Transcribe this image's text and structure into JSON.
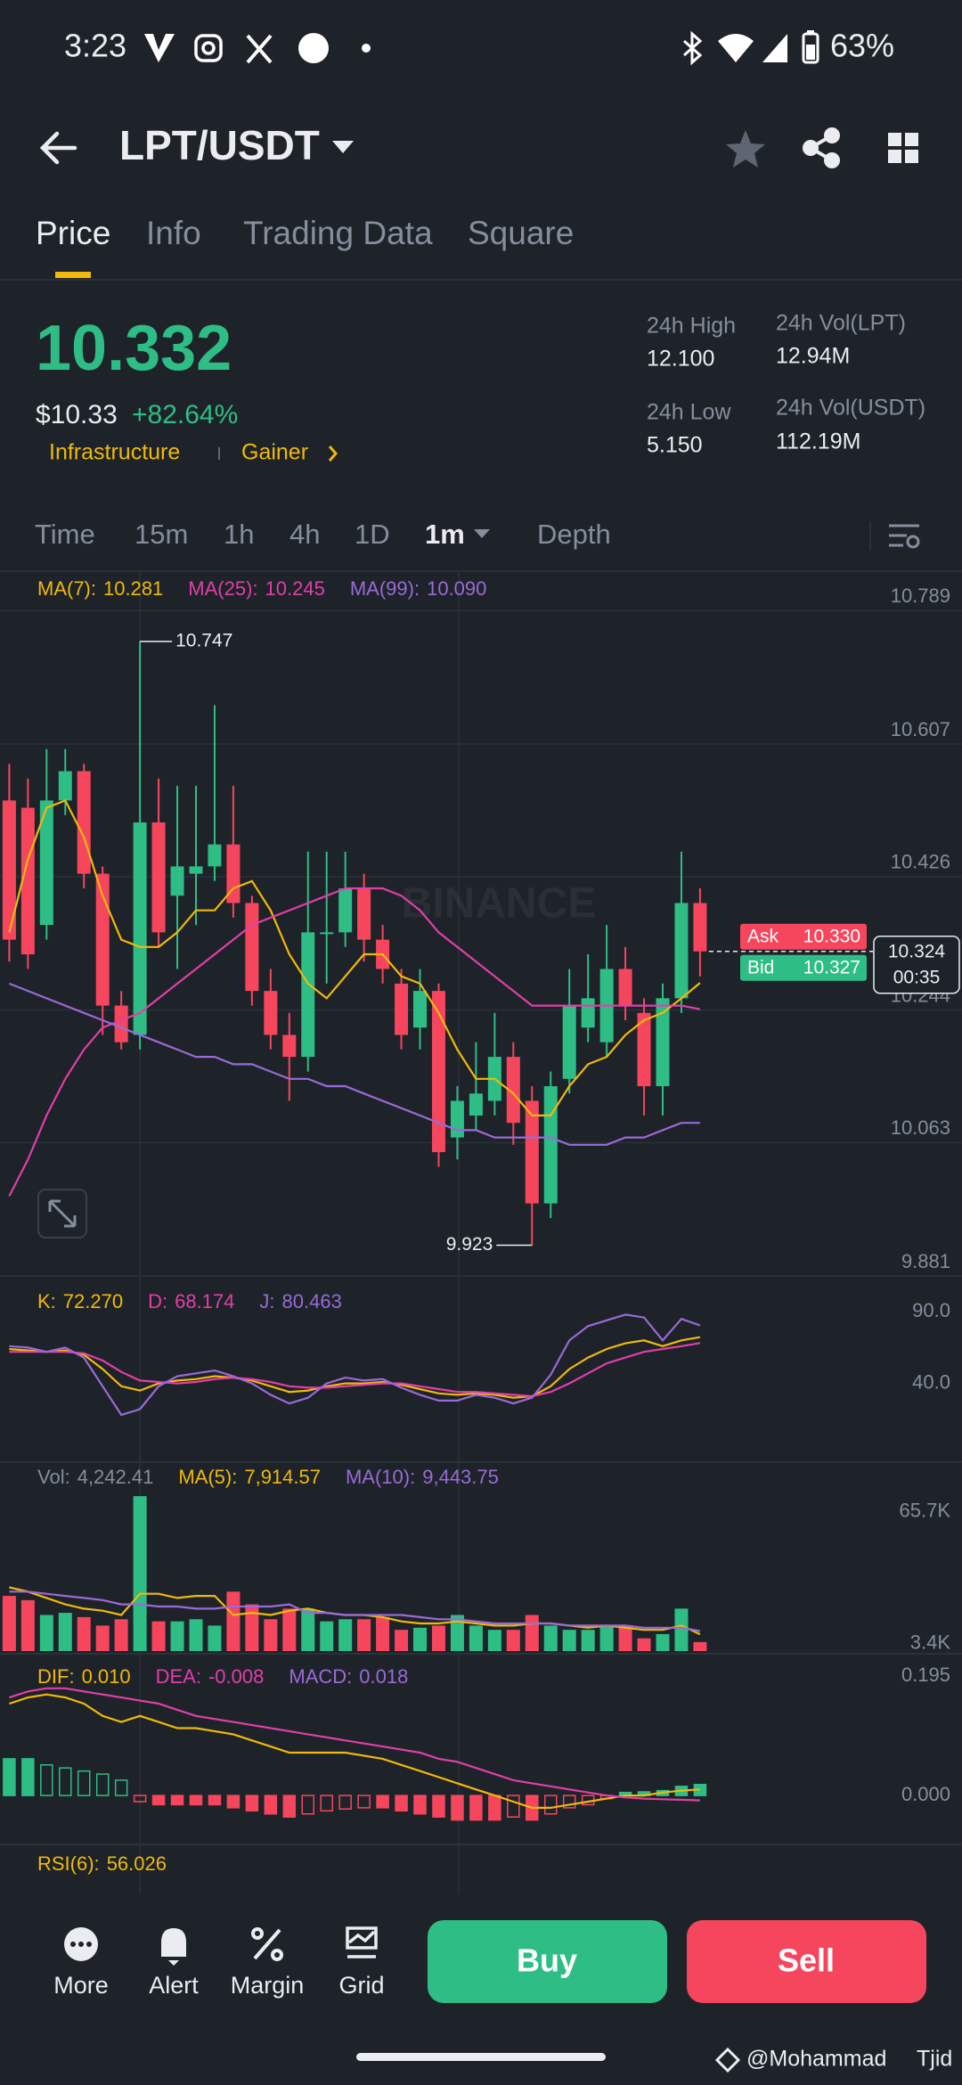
{
  "status_bar": {
    "time": "3:23",
    "battery": "63%"
  },
  "header": {
    "pair": "LPT/USDT"
  },
  "tabs": [
    "Price",
    "Info",
    "Trading Data",
    "Square"
  ],
  "price_info": {
    "last": "10.332",
    "usd": "$10.33",
    "change": "+82.64%",
    "tags": [
      "Infrastructure",
      "Gainer"
    ],
    "stats": [
      {
        "label": "24h High",
        "value": "12.100"
      },
      {
        "label": "24h Low",
        "value": "5.150"
      },
      {
        "label": "24h Vol(LPT)",
        "value": "12.94M"
      },
      {
        "label": "24h Vol(USDT)",
        "value": "112.19M"
      }
    ]
  },
  "intervals": [
    "Time",
    "15m",
    "1h",
    "4h",
    "1D",
    "1m",
    "Depth"
  ],
  "chart_data": [
    {
      "type": "candlestick",
      "watermark": "BINANCE",
      "grid": true,
      "up_color": "#2ebd85",
      "down_color": "#f6465d",
      "open": [
        10.53,
        10.52,
        10.36,
        10.53,
        10.57,
        10.43,
        10.25,
        10.21,
        10.5,
        10.4,
        10.43,
        10.44,
        10.47,
        10.39,
        10.27,
        10.21,
        10.18,
        10.35,
        10.35,
        10.41,
        10.34,
        10.28,
        10.22,
        10.27,
        10.07,
        10.1,
        10.12,
        10.18,
        10.12,
        9.98,
        10.15,
        10.22,
        10.2,
        10.3,
        10.24,
        10.14,
        10.26,
        10.39
      ],
      "high": [
        10.58,
        10.56,
        10.6,
        10.6,
        10.58,
        10.44,
        10.27,
        10.747,
        10.56,
        10.55,
        10.55,
        10.66,
        10.55,
        10.4,
        10.3,
        10.24,
        10.46,
        10.46,
        10.46,
        10.43,
        10.36,
        10.3,
        10.3,
        10.28,
        10.14,
        10.2,
        10.24,
        10.2,
        10.14,
        10.16,
        10.3,
        10.32,
        10.36,
        10.33,
        10.26,
        10.28,
        10.46,
        10.41
      ],
      "low": [
        10.31,
        10.3,
        10.34,
        10.51,
        10.41,
        10.21,
        10.19,
        10.19,
        10.33,
        10.3,
        10.36,
        10.42,
        10.37,
        10.25,
        10.19,
        10.12,
        10.16,
        10.28,
        10.33,
        10.31,
        10.28,
        10.19,
        10.19,
        10.03,
        10.04,
        10.08,
        10.1,
        10.06,
        9.923,
        9.96,
        10.13,
        10.2,
        10.18,
        10.23,
        10.1,
        10.1,
        10.24,
        10.29
      ],
      "close": [
        10.34,
        10.32,
        10.53,
        10.57,
        10.43,
        10.25,
        10.2,
        10.5,
        10.35,
        10.44,
        10.44,
        10.47,
        10.39,
        10.27,
        10.21,
        10.18,
        10.35,
        10.35,
        10.41,
        10.34,
        10.3,
        10.21,
        10.27,
        10.05,
        10.12,
        10.13,
        10.18,
        10.09,
        9.98,
        10.14,
        10.25,
        10.26,
        10.3,
        10.25,
        10.14,
        10.26,
        10.39,
        10.324
      ],
      "series": [
        {
          "name": "MA(7):",
          "value_label": "10.281",
          "color": "#f0b90b",
          "values": [
            10.35,
            10.45,
            10.52,
            10.53,
            10.48,
            10.4,
            10.34,
            10.33,
            10.33,
            10.35,
            10.38,
            10.38,
            10.41,
            10.42,
            10.38,
            10.32,
            10.28,
            10.26,
            10.29,
            10.32,
            10.32,
            10.29,
            10.28,
            10.24,
            10.19,
            10.15,
            10.15,
            10.13,
            10.1,
            10.1,
            10.14,
            10.17,
            10.18,
            10.21,
            10.23,
            10.24,
            10.26,
            10.281
          ]
        },
        {
          "name": "MA(25):",
          "value_label": "10.245",
          "color": "#e03fa8",
          "values": [
            9.99,
            10.04,
            10.1,
            10.15,
            10.19,
            10.22,
            10.23,
            10.24,
            10.26,
            10.28,
            10.3,
            10.32,
            10.34,
            10.36,
            10.37,
            10.38,
            10.39,
            10.4,
            10.41,
            10.41,
            10.41,
            10.4,
            10.38,
            10.35,
            10.33,
            10.31,
            10.29,
            10.27,
            10.25,
            10.25,
            10.25,
            10.25,
            10.25,
            10.25,
            10.25,
            10.25,
            10.25,
            10.245
          ]
        },
        {
          "name": "MA(99):",
          "value_label": "10.090",
          "color": "#9a6ad8",
          "values": [
            10.28,
            10.27,
            10.26,
            10.25,
            10.24,
            10.23,
            10.22,
            10.21,
            10.2,
            10.19,
            10.18,
            10.18,
            10.17,
            10.17,
            10.16,
            10.15,
            10.15,
            10.14,
            10.14,
            10.13,
            10.12,
            10.11,
            10.1,
            10.09,
            10.08,
            10.08,
            10.07,
            10.07,
            10.07,
            10.07,
            10.06,
            10.06,
            10.06,
            10.07,
            10.07,
            10.08,
            10.09,
            10.09
          ]
        }
      ],
      "ylim": [
        9.881,
        10.843
      ],
      "yticks": [
        10.789,
        10.607,
        10.426,
        10.244,
        10.063,
        9.881
      ],
      "high_label": 10.747,
      "low_label": 9.923,
      "ask": {
        "name": "Ask",
        "value": 10.33,
        "value_label": "10.330"
      },
      "bid": {
        "name": "Bid",
        "value": 10.327
      },
      "last_price": 10.324,
      "countdown": "00:35"
    },
    {
      "type": "line",
      "series": [
        {
          "name": "K:",
          "value_label": "72.270",
          "color": "#f0b90b",
          "values": [
            64,
            63,
            62,
            63,
            60,
            50,
            38,
            35,
            40,
            42,
            43,
            45,
            44,
            42,
            38,
            34,
            35,
            38,
            40,
            40,
            41,
            39,
            36,
            33,
            32,
            33,
            32,
            30,
            31,
            38,
            50,
            58,
            64,
            68,
            70,
            66,
            70,
            72.27
          ]
        },
        {
          "name": "D:",
          "value_label": "68.174",
          "color": "#e03fa8",
          "values": [
            62,
            62,
            62,
            62,
            61,
            56,
            48,
            42,
            41,
            40,
            41,
            43,
            44,
            43,
            41,
            38,
            37,
            37,
            38,
            39,
            40,
            40,
            38,
            36,
            34,
            34,
            33,
            32,
            31,
            34,
            40,
            47,
            54,
            58,
            62,
            64,
            66,
            68.174
          ]
        },
        {
          "name": "J:",
          "value_label": "80.463",
          "color": "#9a6ad8",
          "values": [
            66,
            65,
            62,
            65,
            58,
            38,
            18,
            22,
            38,
            45,
            47,
            49,
            45,
            40,
            32,
            26,
            30,
            40,
            44,
            42,
            43,
            37,
            32,
            28,
            28,
            32,
            30,
            26,
            30,
            46,
            70,
            80,
            84,
            88,
            86,
            70,
            85,
            80.463
          ]
        }
      ],
      "ylim": [
        -15,
        115
      ],
      "yticks": [
        {
          "value": 90,
          "label": "90.0"
        },
        {
          "value": 40,
          "label": "40.0"
        }
      ]
    },
    {
      "type": "bar",
      "name": "Vol:",
      "value_label": "4,242.41",
      "values": [
        26000,
        24000,
        17000,
        18000,
        16000,
        12000,
        15000,
        73000,
        14000,
        14000,
        15000,
        12000,
        28000,
        22000,
        15000,
        20000,
        20000,
        14000,
        15000,
        15000,
        16000,
        10000,
        11000,
        12000,
        17000,
        12000,
        10000,
        10000,
        17000,
        12000,
        10000,
        10000,
        12000,
        12000,
        6000,
        8000,
        20000,
        4242.41
      ],
      "series": [
        {
          "name": "MA(5):",
          "value_label": "7,914.57",
          "color": "#f0b90b",
          "values": [
            30000,
            28000,
            25000,
            22000,
            20000,
            19000,
            17000,
            27000,
            27000,
            25000,
            26000,
            26000,
            17000,
            18000,
            17000,
            19000,
            20000,
            18000,
            17000,
            17000,
            16000,
            14000,
            13000,
            13000,
            14000,
            13000,
            12000,
            12000,
            13000,
            13000,
            12000,
            11000,
            12000,
            11000,
            10000,
            10000,
            12000,
            7914.57
          ]
        },
        {
          "name": "MA(10):",
          "value_label": "9,443.75",
          "color": "#9a6ad8",
          "values": [
            28000,
            28000,
            27000,
            26000,
            25000,
            24000,
            22000,
            22000,
            21000,
            21000,
            20000,
            20000,
            21000,
            21000,
            21000,
            22000,
            18000,
            18000,
            17000,
            17000,
            17000,
            17000,
            16000,
            15000,
            15000,
            14000,
            13000,
            13000,
            13000,
            13000,
            12000,
            12000,
            12000,
            12000,
            11000,
            11000,
            11000,
            9443.75
          ]
        }
      ],
      "ylim": [
        0,
        89000
      ],
      "yticks": [
        {
          "value": 65700,
          "label": "65.7K"
        },
        {
          "value": 3400,
          "label": "3.4K"
        }
      ]
    },
    {
      "type": "macd",
      "name": "MACD:",
      "value_label": "0.018",
      "values": [
        0.06,
        0.06,
        0.05,
        0.045,
        0.04,
        0.035,
        0.025,
        -0.01,
        -0.015,
        -0.015,
        -0.015,
        -0.015,
        -0.02,
        -0.025,
        -0.03,
        -0.035,
        -0.03,
        -0.025,
        -0.022,
        -0.02,
        -0.02,
        -0.025,
        -0.03,
        -0.035,
        -0.04,
        -0.04,
        -0.04,
        -0.035,
        -0.04,
        -0.03,
        -0.02,
        -0.015,
        -0.005,
        0.005,
        0.006,
        0.008,
        0.015,
        0.018
      ],
      "series": [
        {
          "name": "DIF:",
          "value_label": "0.010",
          "color": "#f0b90b",
          "values": [
            0.15,
            0.16,
            0.165,
            0.16,
            0.15,
            0.13,
            0.12,
            0.13,
            0.12,
            0.11,
            0.11,
            0.105,
            0.1,
            0.09,
            0.08,
            0.07,
            0.07,
            0.07,
            0.07,
            0.065,
            0.06,
            0.05,
            0.04,
            0.03,
            0.02,
            0.01,
            0.0,
            -0.01,
            -0.02,
            -0.02,
            -0.015,
            -0.01,
            -0.005,
            0.0,
            0.0,
            0.005,
            0.008,
            0.01
          ]
        },
        {
          "name": "DEA:",
          "value_label": "-0.008",
          "color": "#e03fa8",
          "values": [
            0.16,
            0.17,
            0.175,
            0.175,
            0.17,
            0.165,
            0.16,
            0.155,
            0.15,
            0.14,
            0.13,
            0.125,
            0.12,
            0.115,
            0.11,
            0.105,
            0.1,
            0.095,
            0.09,
            0.085,
            0.08,
            0.075,
            0.07,
            0.06,
            0.055,
            0.045,
            0.035,
            0.025,
            0.02,
            0.015,
            0.01,
            0.005,
            0.0,
            -0.003,
            -0.005,
            -0.006,
            -0.007,
            -0.008
          ]
        }
      ],
      "ylim": [
        -0.074,
        0.23
      ],
      "yticks": [
        0.195,
        {
          "value": 0,
          "label": "0.000"
        }
      ]
    }
  ],
  "rsi": {
    "name": "RSI(6):",
    "value": "56.026"
  },
  "bottom_bar": {
    "actions": [
      "More",
      "Alert",
      "Margin",
      "Grid"
    ],
    "buy": "Buy",
    "sell": "Sell"
  },
  "footer": {
    "user": "@Mohammad",
    "tag": "Tjid"
  }
}
